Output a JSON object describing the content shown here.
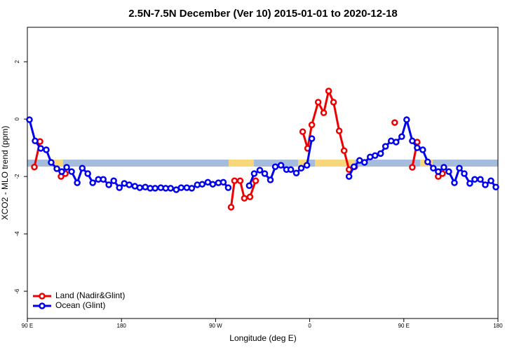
{
  "chart_data": {
    "type": "line",
    "title": "2.5N-7.5N December (Ver 10)   2015-01-01 to 2020-12-18",
    "x_label": "Longitude (deg E)",
    "y_label": "XCO2 - MLO trend (ppm)",
    "xlim": [
      90,
      540
    ],
    "xticks": [
      {
        "value": 90,
        "label": "90 E"
      },
      180,
      {
        "value": 270,
        "label": "90 W"
      },
      {
        "value": 360,
        "label": "0"
      },
      {
        "value": 450,
        "label": "90 E"
      },
      {
        "value": 540,
        "label": "180"
      }
    ],
    "ylim": [
      -6.95,
      3.2
    ],
    "yticks": [
      -6,
      -4,
      -2,
      0,
      2
    ],
    "legend": "bottom-left",
    "series": [
      {
        "name": "Land (Nadir&Glint)",
        "color": "#ee0000",
        "x": [
          96.7,
          102.1,
          110,
          122.2,
          126.3,
          200,
          284.8,
          288.1,
          293.5,
          297.5,
          302.9,
          308.3,
          330,
          353.3,
          358.0,
          362.0,
          368.1,
          373.4,
          378.1,
          382.8,
          388.2,
          392.9,
          397.6,
          403.0,
          420,
          441.3,
          450,
          458.1,
          462.8,
          470,
          482.9,
          486.9
        ],
        "values": [
          -1.67,
          -0.78,
          null,
          -2.0,
          -1.9,
          null,
          -3.07,
          -2.15,
          -2.15,
          -2.76,
          -2.71,
          -2.15,
          null,
          -0.44,
          -1.02,
          -0.2,
          0.59,
          0.22,
          0.98,
          0.59,
          -0.41,
          -1.1,
          -1.76,
          -1.66,
          null,
          -0.12,
          null,
          -1.68,
          -0.8,
          null,
          -2.0,
          -1.9
        ]
      },
      {
        "name": "Ocean (Glint)",
        "color": "#0000ee",
        "x": [
          92.0,
          97.4,
          102.8,
          108.1,
          112.8,
          118.2,
          122.9,
          127.6,
          132.3,
          137.7,
          142.5,
          147.8,
          152.5,
          157.9,
          162.6,
          167.9,
          172.6,
          178.0,
          182.7,
          187.4,
          192.8,
          197.5,
          202.8,
          207.5,
          212.2,
          217.6,
          222.3,
          227.0,
          232.4,
          237.1,
          242.5,
          247.2,
          252.5,
          257.2,
          262.6,
          267.3,
          272.7,
          277.4,
          282.1,
          292,
          302.2,
          306.9,
          312.3,
          317.0,
          322.4,
          327.1,
          332.5,
          337.8,
          341.9,
          347.2,
          351.9,
          357.3,
          362.0,
          380,
          397.6,
          402.3,
          407.7,
          412.4,
          417.8,
          422.5,
          427.8,
          432.5,
          437.9,
          442.6,
          448.0,
          452.7,
          458.1,
          462.8,
          468.1,
          472.8,
          478.2,
          482.9,
          488.3,
          493.0,
          498.4,
          503.1,
          507.8,
          513.1,
          517.8,
          523.2,
          527.9,
          533.3,
          538.0
        ],
        "values": [
          -0.02,
          -0.76,
          -1.02,
          -1.07,
          -1.51,
          -1.73,
          -1.83,
          -1.68,
          -1.83,
          -2.22,
          -1.71,
          -1.9,
          -2.22,
          -2.1,
          -2.1,
          -2.29,
          -2.15,
          -2.39,
          -2.24,
          -2.29,
          -2.34,
          -2.39,
          -2.37,
          -2.41,
          -2.41,
          -2.39,
          -2.41,
          -2.41,
          -2.46,
          -2.39,
          -2.39,
          -2.41,
          -2.29,
          -2.27,
          -2.2,
          -2.27,
          -2.22,
          -2.2,
          -2.39,
          null,
          -2.32,
          -1.9,
          -1.78,
          -1.9,
          -2.12,
          -1.66,
          -1.61,
          -1.76,
          -1.76,
          -1.88,
          -1.71,
          -1.61,
          -0.68,
          null,
          -2.0,
          -1.66,
          -1.44,
          -1.51,
          -1.32,
          -1.27,
          -1.2,
          -0.95,
          -0.76,
          -0.8,
          -0.61,
          -0.02,
          -0.76,
          -1.0,
          -1.07,
          -1.49,
          -1.71,
          -1.83,
          -1.68,
          -1.83,
          -2.22,
          -1.71,
          -1.9,
          -2.24,
          -2.1,
          -2.1,
          -2.29,
          -2.15,
          -2.37
        ]
      }
    ]
  }
}
